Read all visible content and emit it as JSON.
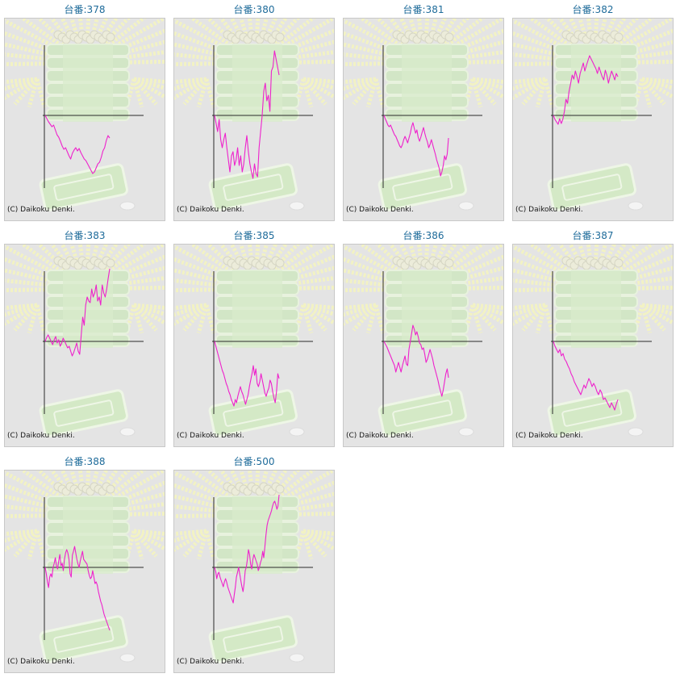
{
  "style": {
    "line_color": "#ee22cc",
    "axis_color": "#2a2a2a",
    "title_color": "#1e6b9a"
  },
  "chart_data": [
    {
      "type": "line",
      "title": "台番:378",
      "credit": "(C) Daikoku Denki.",
      "values": [
        0,
        -4,
        -8,
        -11,
        -14,
        -12,
        -18,
        -24,
        -27,
        -32,
        -38,
        -42,
        -40,
        -45,
        -50,
        -54,
        -47,
        -43,
        -40,
        -44,
        -41,
        -46,
        -50,
        -54,
        -56,
        -60,
        -64,
        -68,
        -72,
        -70,
        -65,
        -60,
        -58,
        -52,
        -44,
        -40,
        -31,
        -25,
        -28
      ]
    },
    {
      "type": "line",
      "title": "台番:380",
      "credit": "(C) Daikoku Denki.",
      "values": [
        0,
        -10,
        -20,
        -5,
        -30,
        -40,
        -30,
        -22,
        -40,
        -55,
        -70,
        -50,
        -45,
        -62,
        -55,
        -40,
        -62,
        -50,
        -70,
        -60,
        -40,
        -25,
        -45,
        -60,
        -70,
        -78,
        -60,
        -72,
        -76,
        -40,
        -20,
        0,
        30,
        40,
        18,
        25,
        5,
        55,
        60,
        80,
        70,
        60,
        50
      ]
    },
    {
      "type": "line",
      "title": "台番:381",
      "credit": "(C) Daikoku Denki.",
      "values": [
        0,
        -4,
        -8,
        -12,
        -14,
        -12,
        -16,
        -20,
        -24,
        -26,
        -30,
        -34,
        -38,
        -40,
        -36,
        -30,
        -26,
        -30,
        -34,
        -28,
        -22,
        -14,
        -9,
        -16,
        -22,
        -18,
        -27,
        -32,
        -27,
        -21,
        -15,
        -22,
        -28,
        -33,
        -40,
        -36,
        -30,
        -36,
        -42,
        -48,
        -55,
        -60,
        -66,
        -75,
        -70,
        -62,
        -50,
        -55,
        -48,
        -28
      ]
    },
    {
      "type": "line",
      "title": "台番:382",
      "credit": "(C) Daikoku Denki.",
      "values": [
        0,
        -5,
        -8,
        -11,
        -4,
        -10,
        -5,
        5,
        20,
        15,
        30,
        40,
        50,
        45,
        55,
        48,
        40,
        52,
        58,
        65,
        55,
        62,
        68,
        74,
        70,
        66,
        62,
        58,
        52,
        60,
        54,
        48,
        44,
        56,
        50,
        40,
        48,
        55,
        50,
        44,
        52,
        48
      ]
    },
    {
      "type": "line",
      "title": "台番:383",
      "credit": "(C) Daikoku Denki.",
      "values": [
        0,
        5,
        8,
        4,
        0,
        -4,
        2,
        6,
        -2,
        2,
        -6,
        -2,
        4,
        0,
        -4,
        -8,
        -6,
        -12,
        -18,
        -14,
        -8,
        -2,
        -12,
        -16,
        8,
        30,
        20,
        45,
        55,
        50,
        48,
        65,
        55,
        60,
        70,
        50,
        55,
        45,
        70,
        60,
        55,
        65,
        78,
        90
      ]
    },
    {
      "type": "line",
      "title": "台番:385",
      "credit": "(C) Daikoku Denki.",
      "values": [
        0,
        -6,
        -12,
        -18,
        -24,
        -30,
        -36,
        -40,
        -46,
        -52,
        -56,
        -62,
        -66,
        -72,
        -76,
        -80,
        -72,
        -76,
        -68,
        -62,
        -56,
        -62,
        -66,
        -72,
        -78,
        -72,
        -66,
        -56,
        -48,
        -40,
        -30,
        -42,
        -34,
        -52,
        -56,
        -50,
        -40,
        -48,
        -56,
        -64,
        -68,
        -62,
        -58,
        -48,
        -52,
        -62,
        -70,
        -76,
        -62,
        -40,
        -46
      ]
    },
    {
      "type": "line",
      "title": "台番:386",
      "credit": "(C) Daikoku Denki.",
      "values": [
        0,
        -3,
        -6,
        -10,
        -14,
        -18,
        -22,
        -26,
        -30,
        -38,
        -32,
        -26,
        -32,
        -38,
        -30,
        -24,
        -18,
        -28,
        -30,
        -10,
        0,
        10,
        20,
        15,
        8,
        12,
        6,
        -2,
        -4,
        -10,
        -8,
        -16,
        -26,
        -22,
        -16,
        -10,
        -16,
        -22,
        -30,
        -36,
        -42,
        -48,
        -56,
        -62,
        -68,
        -60,
        -50,
        -40,
        -34,
        -45
      ]
    },
    {
      "type": "line",
      "title": "台番:387",
      "credit": "(C) Daikoku Denki.",
      "values": [
        0,
        -6,
        -10,
        -14,
        -10,
        -18,
        -15,
        -22,
        -25,
        -30,
        -34,
        -40,
        -44,
        -50,
        -54,
        -58,
        -62,
        -66,
        -60,
        -54,
        -58,
        -52,
        -46,
        -50,
        -56,
        -52,
        -56,
        -62,
        -66,
        -60,
        -64,
        -72,
        -70,
        -74,
        -78,
        -82,
        -76,
        -80,
        -85,
        -78,
        -72
      ]
    },
    {
      "type": "line",
      "title": "台番:388",
      "credit": "(C) Daikoku Denki.",
      "values": [
        0,
        -8,
        -18,
        -25,
        -12,
        -8,
        -12,
        0,
        5,
        12,
        2,
        -2,
        8,
        16,
        2,
        5,
        -4,
        10,
        18,
        22,
        18,
        10,
        -8,
        -12,
        15,
        20,
        26,
        18,
        10,
        4,
        0,
        8,
        14,
        20,
        10,
        8,
        6,
        4,
        -4,
        -10,
        -14,
        -12,
        -4,
        -12,
        -20,
        -18,
        -22,
        -30,
        -36,
        -42,
        -46,
        -52,
        -58,
        -62,
        -66,
        -70,
        -74,
        -78
      ]
    },
    {
      "type": "line",
      "title": "台番:500",
      "credit": "(C) Daikoku Denki.",
      "values": [
        0,
        -5,
        -14,
        -8,
        -6,
        -12,
        -16,
        -20,
        -24,
        -18,
        -14,
        -18,
        -24,
        -28,
        -32,
        -36,
        -40,
        -44,
        -34,
        -24,
        -12,
        -6,
        0,
        -8,
        -16,
        -24,
        -30,
        -20,
        -4,
        0,
        10,
        22,
        16,
        4,
        -2,
        10,
        16,
        12,
        8,
        4,
        -4,
        0,
        6,
        10,
        20,
        12,
        26,
        40,
        52,
        58,
        62,
        66,
        70,
        76,
        80,
        82,
        78,
        72,
        76,
        90
      ]
    }
  ]
}
